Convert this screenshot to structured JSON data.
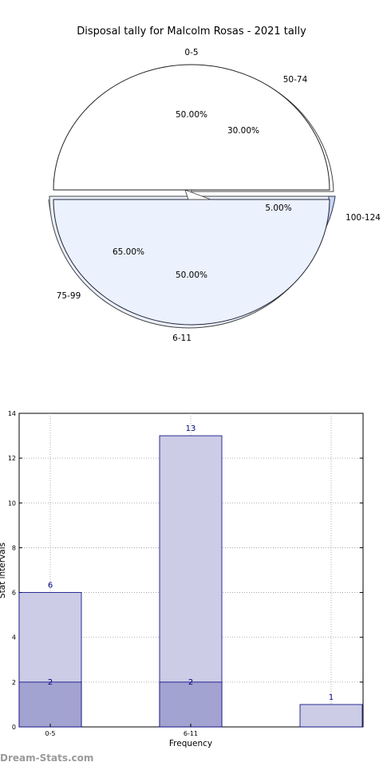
{
  "watermark": "Dream-Stats.com",
  "chart_data": [
    {
      "type": "pie",
      "title": "Disposal tally for Malcolm Rosas - 2021 tally",
      "series": [
        {
          "name": "",
          "slices": [
            {
              "label": "0-5",
              "value": 50.0,
              "pct_label": "50.00%"
            },
            {
              "label": "6-11",
              "value": 50.0,
              "pct_label": "50.00%"
            }
          ]
        },
        {
          "name": "",
          "slices": [
            {
              "label": "50-74",
              "value": 30.0,
              "pct_label": "30.00%"
            },
            {
              "label": "100-124",
              "value": 5.0,
              "pct_label": "5.00%"
            },
            {
              "label": "75-99",
              "value": 65.0,
              "pct_label": "65.00%"
            }
          ]
        }
      ],
      "colors": {
        "light": "#ffffff",
        "fill": "#ebf1fd",
        "accent": "#c7d7f5",
        "shadow": "#888888"
      }
    },
    {
      "type": "bar",
      "xlabel": "Frequency",
      "ylabel": "Stat intervals",
      "categories": [
        "0-5",
        "6-11",
        ""
      ],
      "series": [
        {
          "name": "",
          "values": [
            6,
            13,
            1
          ],
          "color": "#cccce6"
        },
        {
          "name": "",
          "values": [
            2,
            2,
            0
          ],
          "color": "#a3a3d1"
        }
      ],
      "ylim": [
        0,
        14
      ],
      "yticks": [
        0,
        2,
        4,
        6,
        8,
        10,
        12,
        14
      ],
      "grid": true
    }
  ]
}
